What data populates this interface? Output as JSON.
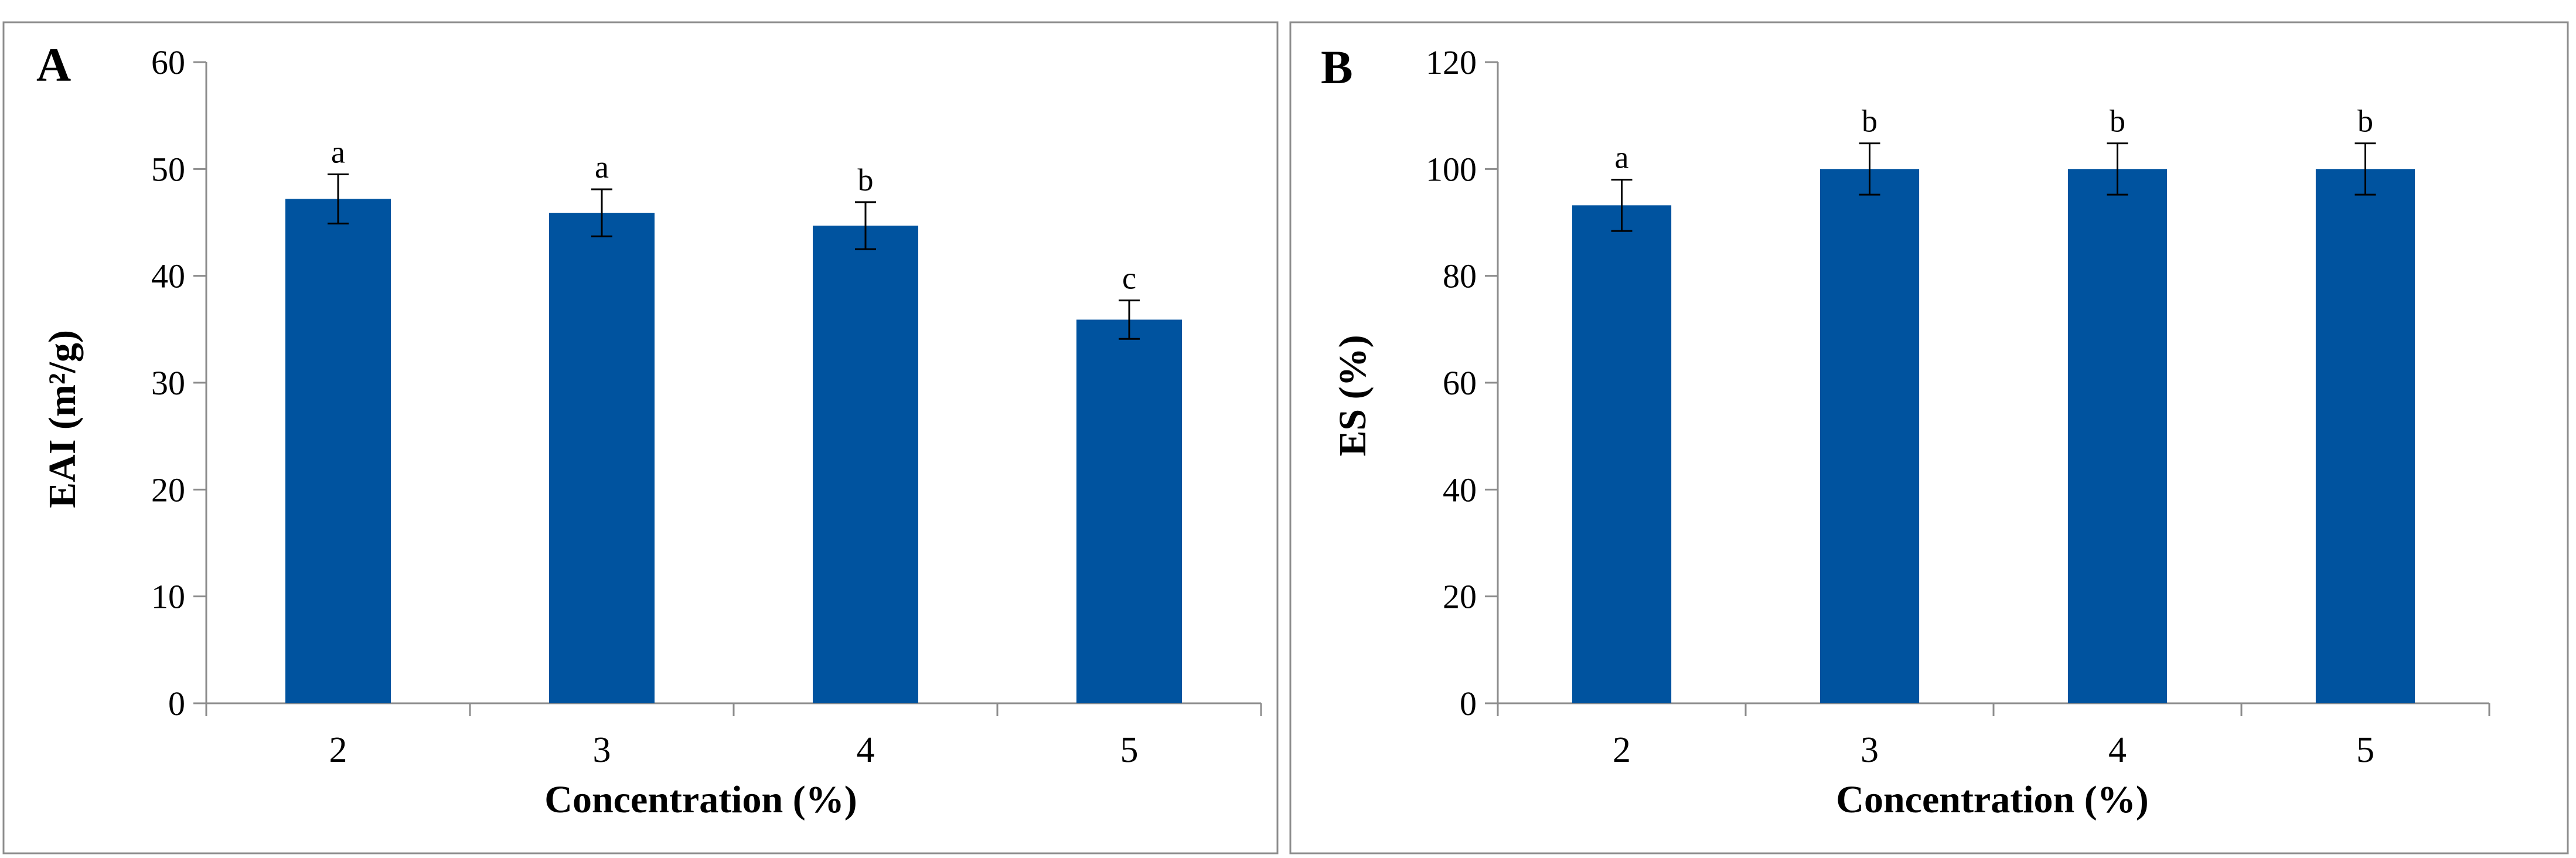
{
  "chart_data": [
    {
      "type": "bar",
      "panel_label": "A",
      "categories": [
        "2",
        "3",
        "4",
        "5"
      ],
      "values": [
        47.2,
        45.9,
        44.7,
        35.9
      ],
      "errors": [
        2.3,
        2.2,
        2.2,
        1.8
      ],
      "significance": [
        "a",
        "a",
        "b",
        "c"
      ],
      "xlabel": "Concentration (%)",
      "ylabel": "EAI (m²/g)",
      "ylim": [
        0,
        60
      ],
      "yticks": [
        "0",
        "10",
        "20",
        "30",
        "40",
        "50",
        "60"
      ],
      "bar_color": "#00539f",
      "grid": false,
      "legend": "none"
    },
    {
      "type": "bar",
      "panel_label": "B",
      "categories": [
        "2",
        "3",
        "4",
        "5"
      ],
      "values": [
        93.2,
        100,
        100,
        100
      ],
      "errors": [
        4.8,
        4.8,
        4.8,
        4.8
      ],
      "significance": [
        "a",
        "b",
        "b",
        "b"
      ],
      "xlabel": "Concentration (%)",
      "ylabel": "ES (%)",
      "ylim": [
        0,
        120
      ],
      "yticks": [
        "0",
        "20",
        "40",
        "60",
        "80",
        "100",
        "120"
      ],
      "bar_color": "#00539f",
      "grid": false,
      "legend": "none"
    }
  ]
}
